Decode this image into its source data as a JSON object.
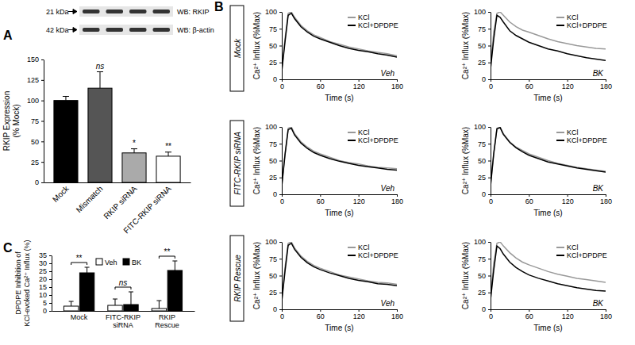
{
  "chart_data": [
    {
      "type": "bar",
      "title": "A",
      "annotations": [
        "21 kDa",
        "WB: RKIP",
        "42 kDa",
        "WB: β-actin"
      ],
      "categories": [
        "Mock",
        "Mismatch",
        "RKIP siRNA",
        "FITC-RKIP siRNA"
      ],
      "values": [
        100,
        115,
        36,
        32
      ],
      "errors": [
        5,
        20,
        5,
        5
      ],
      "significance": [
        null,
        "ns",
        "*",
        "**"
      ],
      "colors": [
        "#000000",
        "#555555",
        "#aaaaaa",
        "#ffffff"
      ],
      "y_label": [
        "RKIP Expression",
        "(% Mock)"
      ],
      "ylim": [
        0,
        150
      ],
      "yticks": [
        0,
        25,
        50,
        75,
        100,
        125,
        150
      ]
    },
    {
      "type": "line",
      "title": "B",
      "subtitle": "Mock",
      "annotation": "Veh",
      "x": [
        0,
        5,
        10,
        15,
        20,
        30,
        40,
        50,
        60,
        75,
        90,
        105,
        120,
        135,
        150,
        165,
        180
      ],
      "xlim": [
        0,
        180
      ],
      "xticks": [
        0,
        60,
        120,
        180
      ],
      "ylim": [
        0,
        100
      ],
      "yticks": [
        0,
        25,
        50,
        75,
        100
      ],
      "x_label": "Time (s)",
      "y_label": "Ca²⁺ Influx (%Max)",
      "legend": "top-right",
      "series": [
        {
          "name": "KCl",
          "color": "#999999",
          "values": [
            15,
            60,
            98,
            100,
            92,
            80,
            72,
            66,
            62,
            56,
            52,
            48,
            45,
            42,
            40,
            38,
            35
          ]
        },
        {
          "name": "KCl+DPDPE",
          "color": "#000000",
          "values": [
            12,
            55,
            95,
            98,
            90,
            78,
            70,
            64,
            60,
            55,
            50,
            46,
            43,
            41,
            38,
            36,
            33
          ]
        }
      ]
    },
    {
      "type": "line",
      "annotation": "BK",
      "x": [
        0,
        5,
        10,
        15,
        20,
        30,
        40,
        50,
        60,
        75,
        90,
        105,
        120,
        135,
        150,
        165,
        180
      ],
      "xlim": [
        0,
        180
      ],
      "xticks": [
        0,
        60,
        120,
        180
      ],
      "ylim": [
        0,
        100
      ],
      "yticks": [
        0,
        25,
        50,
        75,
        100
      ],
      "x_label": "Time (s)",
      "y_label": "Ca²⁺ Influx (%Max)",
      "legend": "top-right",
      "series": [
        {
          "name": "KCl",
          "color": "#999999",
          "values": [
            20,
            70,
            98,
            100,
            95,
            85,
            78,
            73,
            70,
            65,
            60,
            56,
            53,
            50,
            48,
            46,
            45
          ]
        },
        {
          "name": "KCl+DPDPE",
          "color": "#000000",
          "values": [
            15,
            60,
            95,
            92,
            85,
            72,
            65,
            60,
            55,
            50,
            45,
            42,
            38,
            35,
            32,
            30,
            28
          ]
        }
      ]
    },
    {
      "type": "line",
      "subtitle": "FITC-RKIP siRNA",
      "annotation": "Veh",
      "x": [
        0,
        5,
        10,
        15,
        20,
        30,
        40,
        50,
        60,
        75,
        90,
        105,
        120,
        135,
        150,
        165,
        180
      ],
      "xlim": [
        0,
        180
      ],
      "xticks": [
        0,
        60,
        120,
        180
      ],
      "ylim": [
        0,
        100
      ],
      "yticks": [
        0,
        25,
        50,
        75,
        100
      ],
      "x_label": "Time (s)",
      "y_label": "Ca²⁺ Influx (%Max)",
      "legend": "top-right",
      "series": [
        {
          "name": "KCl",
          "color": "#999999",
          "values": [
            15,
            60,
            98,
            100,
            90,
            78,
            70,
            64,
            60,
            55,
            50,
            47,
            45,
            42,
            40,
            39,
            38
          ]
        },
        {
          "name": "KCl+DPDPE",
          "color": "#000000",
          "values": [
            12,
            58,
            96,
            98,
            88,
            76,
            68,
            62,
            58,
            53,
            49,
            46,
            43,
            41,
            39,
            37,
            36
          ]
        }
      ]
    },
    {
      "type": "line",
      "annotation": "BK",
      "x": [
        0,
        5,
        10,
        15,
        20,
        30,
        40,
        50,
        60,
        75,
        90,
        105,
        120,
        135,
        150,
        165,
        180
      ],
      "xlim": [
        0,
        180
      ],
      "xticks": [
        0,
        60,
        120,
        180
      ],
      "ylim": [
        0,
        100
      ],
      "yticks": [
        0,
        25,
        50,
        75,
        100
      ],
      "x_label": "Time (s)",
      "y_label": "Ca²⁺ Influx (%Max)",
      "legend": "top-right",
      "series": [
        {
          "name": "KCl",
          "color": "#999999",
          "values": [
            15,
            62,
            98,
            100,
            90,
            78,
            70,
            65,
            60,
            55,
            50,
            46,
            43,
            40,
            38,
            36,
            34
          ]
        },
        {
          "name": "KCl+DPDPE",
          "color": "#000000",
          "values": [
            12,
            60,
            97,
            99,
            89,
            77,
            69,
            63,
            58,
            53,
            48,
            45,
            42,
            39,
            37,
            35,
            33
          ]
        }
      ]
    },
    {
      "type": "line",
      "subtitle": "RKIP Rescue",
      "annotation": "Veh",
      "x": [
        0,
        5,
        10,
        15,
        20,
        30,
        40,
        50,
        60,
        75,
        90,
        105,
        120,
        135,
        150,
        165,
        180
      ],
      "xlim": [
        0,
        180
      ],
      "xticks": [
        0,
        60,
        120,
        180
      ],
      "ylim": [
        0,
        100
      ],
      "yticks": [
        0,
        25,
        50,
        75,
        100
      ],
      "x_label": "Time (s)",
      "y_label": "Ca²⁺ Influx (%Max)",
      "legend": "top-right",
      "series": [
        {
          "name": "KCl",
          "color": "#999999",
          "values": [
            15,
            62,
            98,
            100,
            91,
            79,
            71,
            65,
            61,
            56,
            51,
            48,
            45,
            42,
            40,
            39,
            37
          ]
        },
        {
          "name": "KCl+DPDPE",
          "color": "#000000",
          "values": [
            12,
            56,
            95,
            98,
            89,
            77,
            69,
            63,
            59,
            54,
            50,
            46,
            43,
            41,
            38,
            37,
            35
          ]
        }
      ]
    },
    {
      "type": "line",
      "annotation": "BK",
      "x": [
        0,
        5,
        10,
        15,
        20,
        30,
        40,
        50,
        60,
        75,
        90,
        105,
        120,
        135,
        150,
        165,
        180
      ],
      "xlim": [
        0,
        180
      ],
      "xticks": [
        0,
        60,
        120,
        180
      ],
      "ylim": [
        0,
        100
      ],
      "yticks": [
        0,
        25,
        50,
        75,
        100
      ],
      "x_label": "Time (s)",
      "y_label": "Ca²⁺ Influx (%Max)",
      "legend": "top-right",
      "series": [
        {
          "name": "KCl",
          "color": "#999999",
          "values": [
            18,
            68,
            98,
            100,
            94,
            84,
            76,
            70,
            66,
            61,
            56,
            52,
            49,
            46,
            44,
            42,
            40
          ]
        },
        {
          "name": "KCl+DPDPE",
          "color": "#000000",
          "values": [
            14,
            58,
            94,
            90,
            82,
            70,
            62,
            56,
            51,
            46,
            42,
            38,
            35,
            32,
            30,
            28,
            27
          ]
        }
      ]
    },
    {
      "type": "bar",
      "title": "C",
      "categories": [
        "Mock",
        "FITC-RKIP siRNA",
        "RKIP Rescue"
      ],
      "series": [
        {
          "name": "Veh",
          "color": "#ffffff",
          "values": [
            3,
            3.5,
            1.5
          ],
          "errors": [
            3,
            4,
            5
          ]
        },
        {
          "name": "BK",
          "color": "#000000",
          "values": [
            24,
            4,
            25.5
          ],
          "errors": [
            3.5,
            8,
            6
          ]
        }
      ],
      "significance": [
        "**",
        "ns",
        "**"
      ],
      "y_label": [
        "DPDPE Inhibition of",
        "KCl-evoked Ca²⁺ Influx (%)"
      ],
      "ylim": [
        0,
        35
      ],
      "yticks": [
        0,
        5,
        10,
        15,
        20,
        25,
        30,
        35
      ],
      "legend": "top"
    }
  ]
}
